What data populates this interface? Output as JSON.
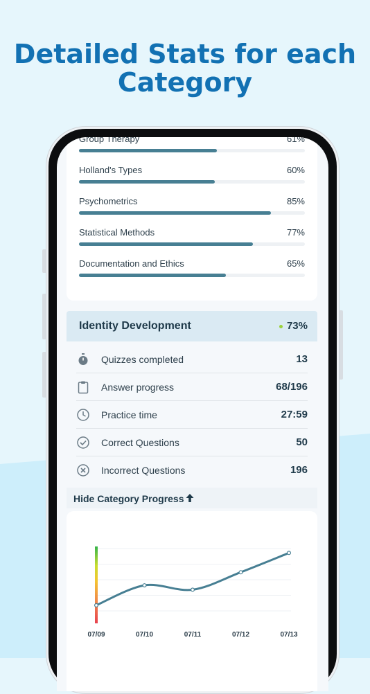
{
  "headline": {
    "line1": "Detailed Stats for each",
    "line2": "Category"
  },
  "categories": [
    {
      "name": "Group Therapy",
      "percent_label": "61%",
      "percent": 61
    },
    {
      "name": "Holland's Types",
      "percent_label": "60%",
      "percent": 60
    },
    {
      "name": "Psychometrics",
      "percent_label": "85%",
      "percent": 85
    },
    {
      "name": "Statistical Methods",
      "percent_label": "77%",
      "percent": 77
    },
    {
      "name": "Documentation and Ethics",
      "percent_label": "65%",
      "percent": 65
    }
  ],
  "identity": {
    "title": "Identity Development",
    "percent_label": "73%",
    "indicator_color": "#9bd13a",
    "stats": [
      {
        "icon": "stopwatch-icon",
        "label": "Quizzes completed",
        "value": "13"
      },
      {
        "icon": "clipboard-icon",
        "label": "Answer progress",
        "value": "68/196"
      },
      {
        "icon": "clock-icon",
        "label": "Practice time",
        "value": "27:59"
      },
      {
        "icon": "check-circle-icon",
        "label": "Correct Questions",
        "value": "50"
      },
      {
        "icon": "x-circle-icon",
        "label": "Incorrect Questions",
        "value": "196"
      }
    ]
  },
  "toggle": {
    "label": "Hide Category Progress",
    "icon": "arrow-up-icon"
  },
  "colors": {
    "brand": "#1271b3",
    "bar": "#477f93",
    "line": "#477f93"
  },
  "chart_data": {
    "type": "line",
    "categories": [
      "07/09",
      "07/10",
      "07/11",
      "07/12",
      "07/13"
    ],
    "values": [
      9,
      41,
      34,
      62,
      93
    ],
    "ylim": [
      0,
      100
    ],
    "grid": true,
    "title": "",
    "xlabel": "",
    "ylabel": ""
  }
}
